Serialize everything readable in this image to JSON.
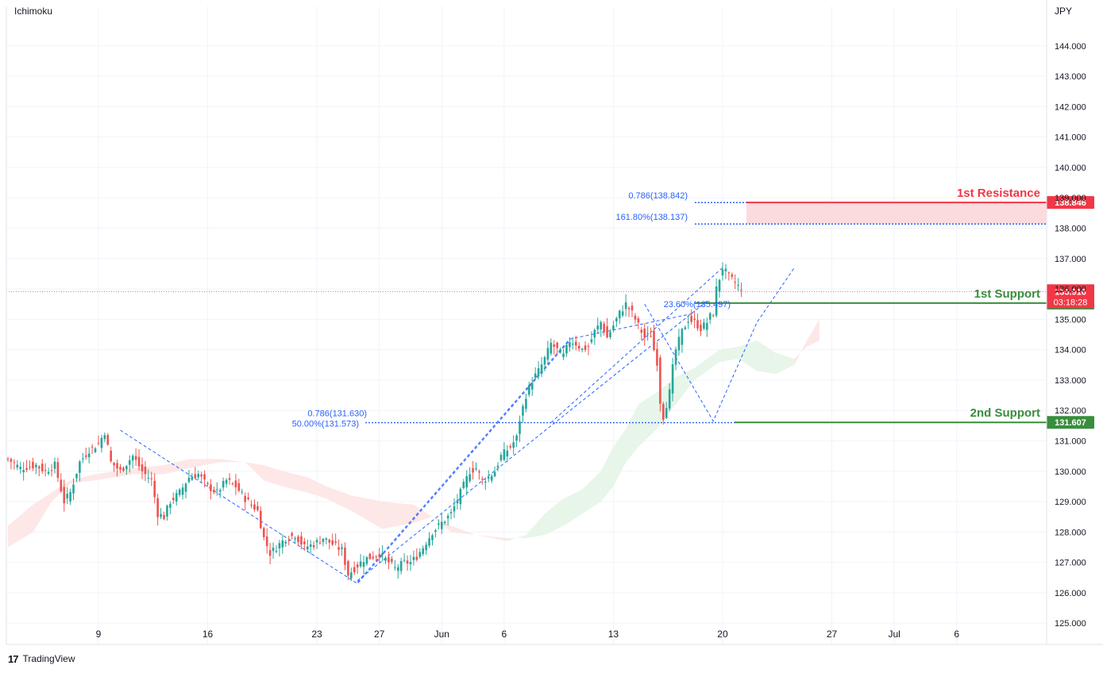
{
  "chart_data": {
    "type": "candlestick",
    "indicator": "Ichimoku",
    "currency": "JPY",
    "ylim": [
      124.3,
      145.3
    ],
    "y_ticks": [
      "144.000",
      "143.000",
      "142.000",
      "141.000",
      "140.000",
      "139.000",
      "138.000",
      "137.000",
      "136.000",
      "135.000",
      "134.000",
      "133.000",
      "132.000",
      "131.000",
      "130.000",
      "129.000",
      "128.000",
      "127.000",
      "126.000",
      "125.000"
    ],
    "x_ticks": [
      {
        "label": "9",
        "bar": 29
      },
      {
        "label": "16",
        "bar": 64
      },
      {
        "label": "23",
        "bar": 99
      },
      {
        "label": "27",
        "bar": 119
      },
      {
        "label": "Jun",
        "bar": 139
      },
      {
        "label": "6",
        "bar": 159
      },
      {
        "label": "13",
        "bar": 194
      },
      {
        "label": "20",
        "bar": 229
      },
      {
        "label": "27",
        "bar": 264
      },
      {
        "label": "Jul",
        "bar": 284
      },
      {
        "label": "6",
        "bar": 304
      }
    ],
    "ohlc_anchors": [
      [
        0,
        130.4
      ],
      [
        4,
        130.1
      ],
      [
        9,
        130.2
      ],
      [
        12,
        130.0
      ],
      [
        15,
        130.2
      ],
      [
        18,
        129.0
      ],
      [
        20,
        129.3
      ],
      [
        23,
        130.3
      ],
      [
        26,
        130.7
      ],
      [
        29,
        130.9
      ],
      [
        31,
        131.3
      ],
      [
        33,
        130.3
      ],
      [
        36,
        130.0
      ],
      [
        40,
        130.5
      ],
      [
        43,
        130.0
      ],
      [
        46,
        129.7
      ],
      [
        48,
        128.6
      ],
      [
        50,
        128.5
      ],
      [
        52,
        129.0
      ],
      [
        55,
        129.3
      ],
      [
        58,
        129.8
      ],
      [
        61,
        129.9
      ],
      [
        64,
        129.5
      ],
      [
        67,
        129.3
      ],
      [
        70,
        129.7
      ],
      [
        73,
        129.5
      ],
      [
        76,
        129.1
      ],
      [
        80,
        128.7
      ],
      [
        82,
        127.8
      ],
      [
        84,
        127.3
      ],
      [
        86,
        127.5
      ],
      [
        89,
        127.8
      ],
      [
        92,
        127.9
      ],
      [
        95,
        127.5
      ],
      [
        98,
        127.6
      ],
      [
        101,
        127.8
      ],
      [
        104,
        127.6
      ],
      [
        107,
        127.4
      ],
      [
        109,
        126.6
      ],
      [
        111,
        126.8
      ],
      [
        114,
        127.1
      ],
      [
        117,
        127.2
      ],
      [
        119,
        127.3
      ],
      [
        121,
        127.1
      ],
      [
        124,
        126.8
      ],
      [
        127,
        127.0
      ],
      [
        129,
        127.0
      ],
      [
        131,
        127.2
      ],
      [
        133,
        127.5
      ],
      [
        136,
        128.0
      ],
      [
        139,
        128.3
      ],
      [
        142,
        128.6
      ],
      [
        145,
        129.3
      ],
      [
        148,
        130.0
      ],
      [
        150,
        130.1
      ],
      [
        152,
        129.7
      ],
      [
        154,
        129.8
      ],
      [
        156,
        130.0
      ],
      [
        158,
        130.5
      ],
      [
        161,
        130.8
      ],
      [
        163,
        131.1
      ],
      [
        164,
        131.7
      ],
      [
        166,
        132.5
      ],
      [
        168,
        133.0
      ],
      [
        170,
        133.3
      ],
      [
        172,
        133.7
      ],
      [
        174,
        134.2
      ],
      [
        176,
        134.0
      ],
      [
        178,
        133.8
      ],
      [
        180,
        134.3
      ],
      [
        182,
        134.2
      ],
      [
        184,
        134.0
      ],
      [
        186,
        134.1
      ],
      [
        188,
        134.6
      ],
      [
        190,
        134.9
      ],
      [
        192,
        134.4
      ],
      [
        194,
        134.8
      ],
      [
        196,
        135.2
      ],
      [
        198,
        135.5
      ],
      [
        200,
        135.2
      ],
      [
        202,
        134.8
      ],
      [
        204,
        134.4
      ],
      [
        206,
        134.5
      ],
      [
        207,
        134.0
      ],
      [
        208,
        133.6
      ],
      [
        209,
        132.3
      ],
      [
        210,
        131.8
      ],
      [
        212,
        132.6
      ],
      [
        213,
        133.4
      ],
      [
        214,
        134.0
      ],
      [
        216,
        134.6
      ],
      [
        218,
        135.0
      ],
      [
        220,
        134.9
      ],
      [
        222,
        134.7
      ],
      [
        224,
        134.9
      ],
      [
        225,
        135.1
      ],
      [
        226,
        135.2
      ],
      [
        227,
        136.0
      ],
      [
        229,
        136.7
      ],
      [
        231,
        136.4
      ],
      [
        232,
        136.3
      ],
      [
        234,
        136.1
      ],
      [
        235,
        135.9
      ]
    ],
    "kumo": [
      [
        0,
        127.5
      ],
      [
        8,
        128.0
      ],
      [
        14,
        129.0
      ],
      [
        20,
        129.6
      ],
      [
        28,
        129.7
      ],
      [
        40,
        129.9
      ],
      [
        50,
        129.9
      ],
      [
        58,
        130.1
      ],
      [
        68,
        130.3
      ],
      [
        76,
        130.3
      ],
      [
        82,
        129.7
      ],
      [
        88,
        129.5
      ],
      [
        96,
        129.3
      ],
      [
        102,
        129.1
      ],
      [
        110,
        128.7
      ],
      [
        120,
        128.1
      ],
      [
        130,
        128.3
      ],
      [
        136,
        128.5
      ],
      [
        142,
        128.0
      ],
      [
        150,
        127.9
      ],
      [
        160,
        127.7
      ],
      [
        166,
        127.9
      ],
      [
        172,
        128.6
      ],
      [
        178,
        129.1
      ],
      [
        184,
        129.4
      ],
      [
        190,
        130.0
      ],
      [
        194,
        130.8
      ],
      [
        198,
        131.4
      ],
      [
        202,
        132.2
      ],
      [
        208,
        132.6
      ],
      [
        214,
        133.1
      ],
      [
        220,
        133.4
      ],
      [
        228,
        134.0
      ],
      [
        234,
        134.1
      ],
      [
        240,
        134.3
      ],
      [
        246,
        133.9
      ],
      [
        252,
        133.7
      ],
      [
        256,
        134.1
      ],
      [
        260,
        134.3
      ]
    ],
    "kumo_pct_b": [
      [
        0,
        128.2
      ],
      [
        8,
        128.9
      ],
      [
        14,
        129.3
      ],
      [
        20,
        129.7
      ],
      [
        28,
        129.9
      ],
      [
        40,
        130.1
      ],
      [
        50,
        130.2
      ],
      [
        58,
        130.4
      ],
      [
        68,
        130.4
      ],
      [
        76,
        130.3
      ],
      [
        82,
        130.2
      ],
      [
        88,
        130.0
      ],
      [
        96,
        129.8
      ],
      [
        102,
        129.5
      ],
      [
        110,
        129.2
      ],
      [
        120,
        129.0
      ],
      [
        130,
        128.9
      ],
      [
        136,
        128.5
      ],
      [
        142,
        128.2
      ],
      [
        150,
        127.9
      ],
      [
        160,
        127.8
      ],
      [
        166,
        127.8
      ],
      [
        172,
        127.9
      ],
      [
        178,
        128.2
      ],
      [
        184,
        128.6
      ],
      [
        190,
        129.0
      ],
      [
        194,
        129.5
      ],
      [
        198,
        130.3
      ],
      [
        202,
        130.8
      ],
      [
        208,
        131.4
      ],
      [
        214,
        132.2
      ],
      [
        220,
        133.0
      ],
      [
        228,
        133.6
      ],
      [
        234,
        133.7
      ],
      [
        240,
        133.3
      ],
      [
        246,
        133.2
      ],
      [
        252,
        133.5
      ],
      [
        256,
        134.3
      ],
      [
        260,
        135.0
      ]
    ],
    "levels": [
      {
        "name": "1st Resistance",
        "price_label": "138.846",
        "value": 138.846,
        "color": "#f23645"
      },
      {
        "name": "1st Support",
        "price_label": "135.536",
        "value": 135.536,
        "color": "#388e3c"
      },
      {
        "name": "2nd Support",
        "price_label": "131.607",
        "value": 131.607,
        "color": "#388e3c"
      }
    ],
    "resistance_zone": {
      "top": 138.846,
      "bottom": 138.137
    },
    "fib_labels": [
      {
        "text": "0.786(138.842)",
        "value": 138.842
      },
      {
        "text": "161.80%(138.137)",
        "value": 138.137
      },
      {
        "text": "23.60%(135.497)",
        "value": 135.497
      },
      {
        "text": "0.786(131.630)",
        "value": 131.63
      },
      {
        "text": "50.00%(131.573)",
        "value": 131.573
      }
    ],
    "current_price": {
      "price": "135.916",
      "countdown": "03:18:28",
      "value": 135.916
    }
  },
  "header": {
    "indicator_label": "Ichimoku",
    "currency_label": "JPY"
  },
  "footer": {
    "brand": "TradingView"
  },
  "colors": {
    "up": "#26a69a",
    "down": "#ef5350",
    "kumo_bull": "#e8f5e9",
    "kumo_bear": "#fde7e7",
    "fib": "#2962ff",
    "resistance": "#f23645",
    "support": "#388e3c"
  }
}
